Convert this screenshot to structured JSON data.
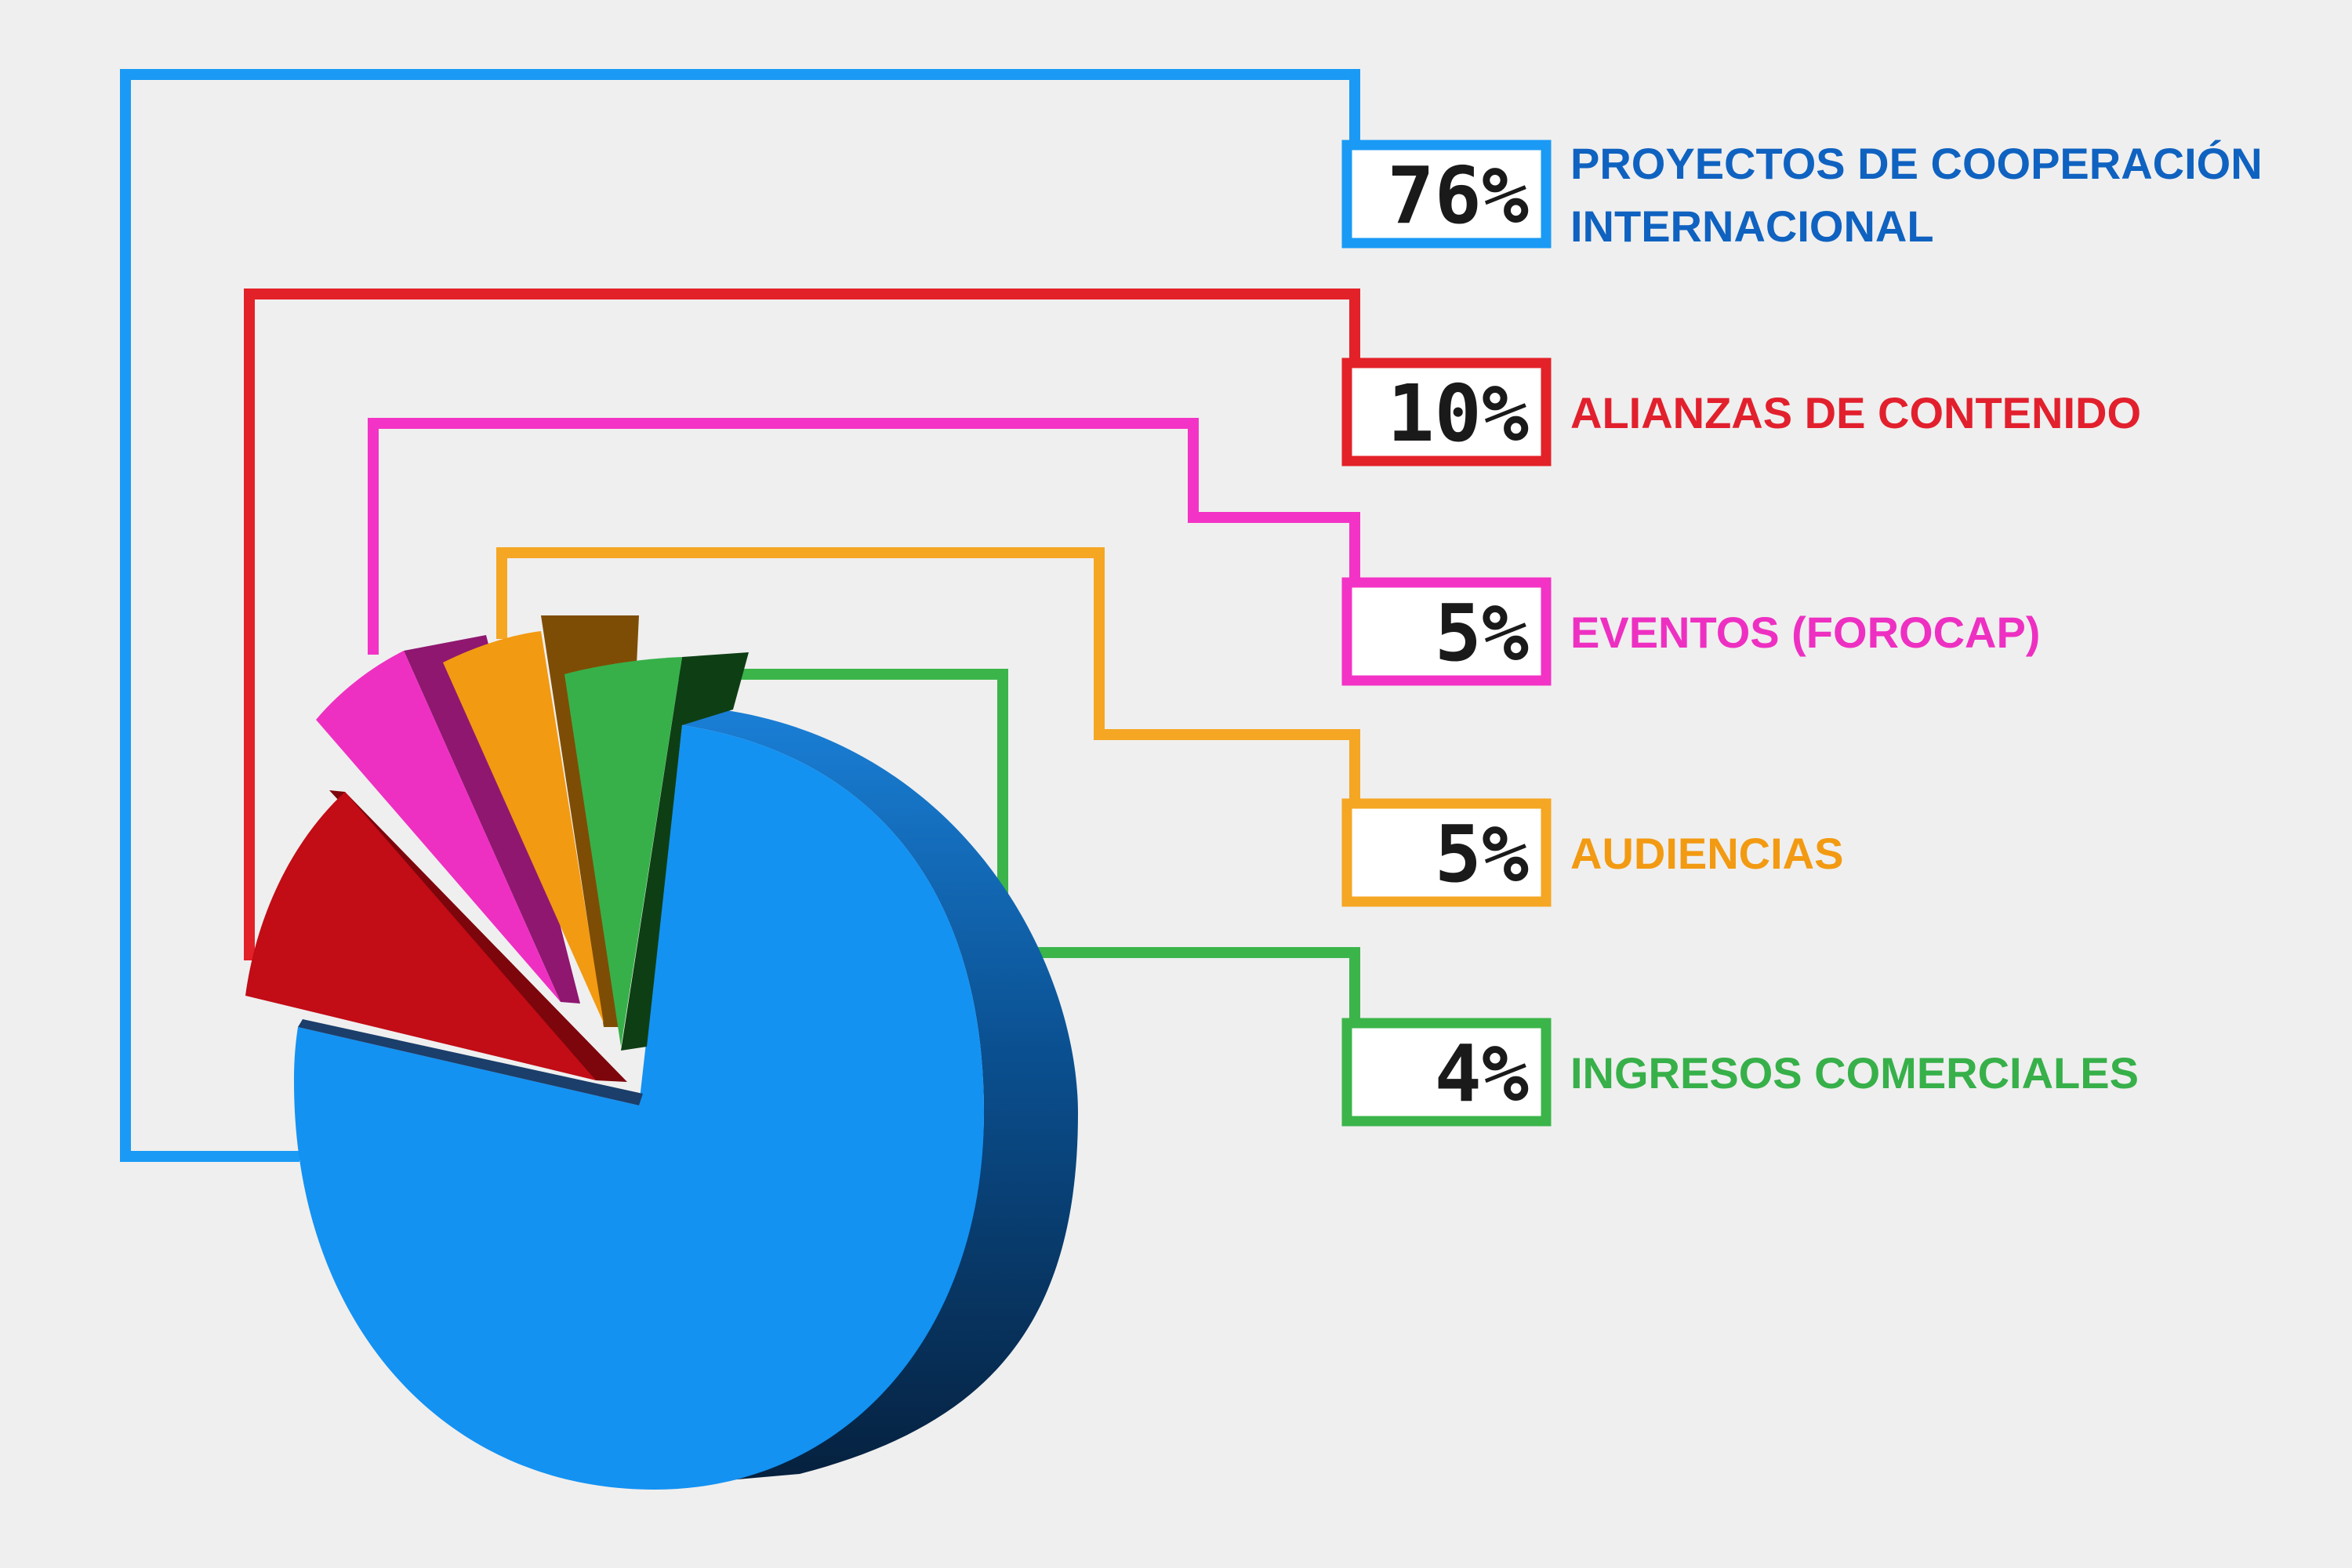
{
  "chart_data": {
    "type": "pie",
    "slices": [
      {
        "label": [
          "PROYECTOS DE COOPERACIÓN",
          "INTERNACIONAL"
        ],
        "value": 76,
        "display": "76%",
        "color": "#1392f2",
        "label_color": "#0f62c0"
      },
      {
        "label": [
          "ALIANZAS DE CONTENIDO"
        ],
        "value": 10,
        "display": "10%",
        "color": "#c20c16",
        "label_color": "#e2202d"
      },
      {
        "label": [
          "EVENTOS (FOROCAP)"
        ],
        "value": 5,
        "display": "5%",
        "color": "#ee30c2",
        "label_color": "#ee30c2"
      },
      {
        "label": [
          "AUDIENCIAS"
        ],
        "value": 5,
        "display": "5%",
        "color": "#f29a12",
        "label_color": "#f29a12"
      },
      {
        "label": [
          "INGRESOS COMERCIALES"
        ],
        "value": 4,
        "display": "4%",
        "color": "#37b04a",
        "label_color": "#37b04a"
      }
    ],
    "style": "3d-exploded",
    "legend": "right"
  }
}
